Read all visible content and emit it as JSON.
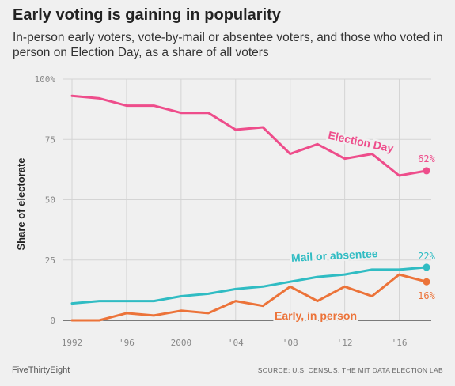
{
  "header": {
    "title": "Early voting is gaining in popularity",
    "subtitle": "In-person early voters, vote-by-mail or absentee voters, and those who voted in person on Election Day, as a share of all voters"
  },
  "footer": {
    "brand": "FiveThirtyEight",
    "source": "SOURCE: U.S. CENSUS, THE MIT DATA ELECTION LAB"
  },
  "chart_data": {
    "type": "line",
    "ylabel": "Share of electorate",
    "xlabel": "",
    "ylim": [
      0,
      100
    ],
    "xlim": [
      1992,
      2018
    ],
    "grid": true,
    "y_ticks": [
      {
        "value": 0,
        "label": "0"
      },
      {
        "value": 25,
        "label": "25"
      },
      {
        "value": 50,
        "label": "50"
      },
      {
        "value": 75,
        "label": "75"
      },
      {
        "value": 100,
        "label": "100%"
      }
    ],
    "x_ticks": [
      {
        "value": 1992,
        "label": "1992"
      },
      {
        "value": 1996,
        "label": "'96"
      },
      {
        "value": 2000,
        "label": "2000"
      },
      {
        "value": 2004,
        "label": "'04"
      },
      {
        "value": 2008,
        "label": "'08"
      },
      {
        "value": 2012,
        "label": "'12"
      },
      {
        "value": 2016,
        "label": "'16"
      }
    ],
    "x": [
      1992,
      1994,
      1996,
      1998,
      2000,
      2002,
      2004,
      2006,
      2008,
      2010,
      2012,
      2014,
      2016,
      2018
    ],
    "series": [
      {
        "name": "Election Day",
        "color": "#ee4d8b",
        "values": [
          93,
          92,
          89,
          89,
          86,
          86,
          79,
          80,
          69,
          73,
          67,
          69,
          60,
          62
        ],
        "end_label": "62%"
      },
      {
        "name": "Mail or absentee",
        "color": "#30bcc3",
        "values": [
          7,
          8,
          8,
          8,
          10,
          11,
          13,
          14,
          16,
          18,
          19,
          21,
          21,
          22
        ],
        "end_label": "22%"
      },
      {
        "name": "Early, in person",
        "color": "#ec7339",
        "values": [
          0,
          0,
          3,
          2,
          4,
          3,
          8,
          6,
          14,
          8,
          14,
          10,
          19,
          16
        ],
        "end_label": "16%"
      }
    ]
  }
}
